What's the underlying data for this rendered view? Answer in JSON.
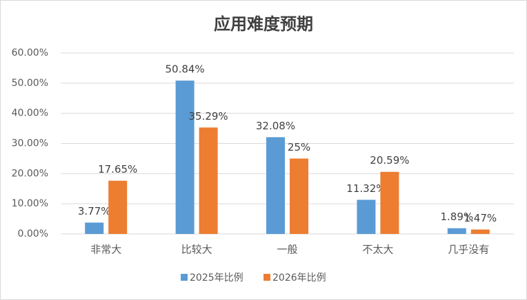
{
  "chart_data": {
    "type": "bar",
    "title": "应用难度预期",
    "categories": [
      "非常大",
      "比较大",
      "一般",
      "不太大",
      "几乎没有"
    ],
    "series": [
      {
        "name": "2025年比例",
        "color": "#5b9bd5",
        "values": [
          3.77,
          50.84,
          32.08,
          11.32,
          1.89
        ],
        "value_labels": [
          "3.77%",
          "50.84%",
          "32.08%",
          "11.32%",
          "1.89%"
        ]
      },
      {
        "name": "2026年比例",
        "color": "#ed7d31",
        "values": [
          17.65,
          35.29,
          25,
          20.59,
          1.47
        ],
        "value_labels": [
          "17.65%",
          "35.29%",
          "25%",
          "20.59%",
          "1.47%"
        ]
      }
    ],
    "ylim": [
      0,
      60
    ],
    "yticks": [
      {
        "value": 0,
        "label": "0.00%"
      },
      {
        "value": 10,
        "label": "10.00%"
      },
      {
        "value": 20,
        "label": "20.00%"
      },
      {
        "value": 30,
        "label": "30.00%"
      },
      {
        "value": 40,
        "label": "40.00%"
      },
      {
        "value": 50,
        "label": "50.00%"
      },
      {
        "value": 60,
        "label": "60.00%"
      }
    ],
    "grid": true,
    "legend": "bottom"
  }
}
